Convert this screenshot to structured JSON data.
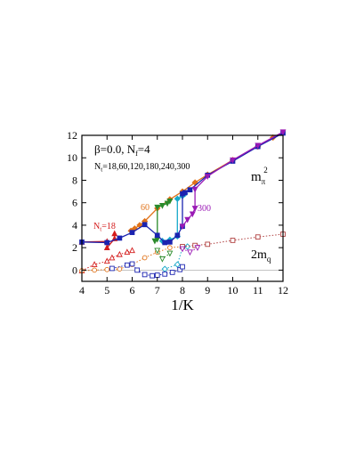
{
  "chart_data": {
    "type": "line",
    "xlabel": "1/K",
    "ylabel": "",
    "xlim": [
      4,
      12
    ],
    "ylim": [
      -1,
      12
    ],
    "xticks": [
      4,
      5,
      6,
      7,
      8,
      9,
      10,
      11,
      12
    ],
    "yticks": [
      0,
      2,
      4,
      6,
      8,
      10,
      12
    ],
    "grid": false,
    "annotations": {
      "params": "β=0.0,  N",
      "params_sub": "f",
      "params_tail": "=4",
      "nt_prefix": "N",
      "nt_sub": "t",
      "nt_list": "=18,60,120,180,240,300",
      "nt18_prefix": "N",
      "nt18_sub": "t",
      "nt18_tail": "=18",
      "label_60": "60",
      "label_300": "300",
      "mpi_main": "m",
      "mpi_sub": "π",
      "mpi_sup": "2",
      "mq_main": "2m",
      "mq_sub": "q"
    },
    "series": [
      {
        "group": "m_pi^2",
        "color": "#d41c1c",
        "marker": "triangle-up",
        "style": "solid",
        "x": [
          4.0,
          5.0,
          5.0,
          5.3,
          5.3
        ],
        "y": [
          2.5,
          2.55,
          2.0,
          2.8,
          3.25
        ]
      },
      {
        "group": "m_pi^2",
        "color": "#e0731a",
        "marker": "diamond",
        "style": "solid",
        "x": [
          5.95,
          6.1,
          6.3,
          6.5,
          7.0,
          7.5,
          8.0,
          8.5,
          9.0,
          10.0,
          11.0,
          11.6
        ],
        "y": [
          3.5,
          3.7,
          4.0,
          4.35,
          5.5,
          6.3,
          7.0,
          7.8,
          8.5,
          9.8,
          11.0,
          11.8
        ]
      },
      {
        "group": "m_pi^2",
        "color": "#2a8a2a",
        "marker": "triangle-down",
        "style": "solid",
        "x": [
          6.9,
          7.0,
          7.0,
          7.2,
          7.4,
          7.5
        ],
        "y": [
          2.6,
          2.75,
          5.6,
          5.75,
          5.95,
          6.15
        ]
      },
      {
        "group": "m_pi^2",
        "color": "#18a9c9",
        "marker": "diamond",
        "style": "solid",
        "x": [
          7.2,
          7.5,
          7.8,
          7.8,
          8.0,
          8.1
        ],
        "y": [
          2.6,
          2.7,
          3.0,
          6.35,
          6.6,
          6.8
        ]
      },
      {
        "group": "m_pi^2",
        "color": "#1b23b0",
        "marker": "square",
        "style": "solid",
        "x": [
          4.0,
          5.0,
          5.5,
          6.0,
          6.5,
          7.0,
          7.3,
          7.5,
          7.8,
          8.0,
          8.0,
          8.1,
          8.3,
          9.0,
          10.0,
          11.0,
          12.0
        ],
        "y": [
          2.5,
          2.45,
          2.85,
          3.35,
          4.05,
          3.1,
          2.45,
          2.5,
          3.1,
          3.9,
          6.8,
          6.9,
          7.15,
          8.45,
          9.7,
          11.0,
          12.2
        ]
      },
      {
        "group": "m_pi^2",
        "color": "#9a1ab5",
        "marker": "triangle-down",
        "style": "solid",
        "x": [
          8.0,
          8.2,
          8.4,
          8.5,
          8.5,
          9.0,
          10.0,
          11.0,
          12.0
        ],
        "y": [
          3.9,
          4.5,
          5.0,
          5.5,
          7.2,
          8.35,
          9.8,
          11.1,
          12.3
        ]
      },
      {
        "group": "2m_q",
        "color": "#d41c1c",
        "marker": "triangle-up",
        "style": "dotted",
        "x": [
          4.0,
          4.5,
          5.0,
          5.2,
          5.5,
          5.8,
          6.0
        ],
        "y": [
          -0.05,
          0.5,
          0.8,
          1.1,
          1.4,
          1.6,
          1.75
        ]
      },
      {
        "group": "2m_q",
        "color": "#e0731a",
        "marker": "circle",
        "style": "dotted",
        "x": [
          4.0,
          4.5,
          5.0,
          5.5,
          6.0,
          6.5,
          7.0,
          7.5,
          8.0
        ],
        "y": [
          -0.05,
          0.0,
          0.05,
          0.1,
          0.5,
          1.1,
          1.6,
          2.0,
          2.1
        ]
      },
      {
        "group": "2m_q",
        "color": "#2a8a2a",
        "marker": "triangle-down",
        "style": "dotted",
        "x": [
          7.0,
          7.2,
          7.5
        ],
        "y": [
          1.75,
          1.0,
          1.5
        ]
      },
      {
        "group": "2m_q",
        "color": "#18a9c9",
        "marker": "diamond",
        "style": "dotted",
        "x": [
          7.3,
          7.8,
          8.0,
          8.2
        ],
        "y": [
          0.1,
          0.5,
          2.0,
          2.1
        ]
      },
      {
        "group": "2m_q",
        "color": "#1b23b0",
        "marker": "square",
        "style": "dotted",
        "x": [
          5.2,
          5.8,
          6.0,
          6.2,
          6.5,
          6.8,
          7.0,
          7.3,
          7.6,
          7.9,
          8.0
        ],
        "y": [
          0.15,
          0.45,
          0.55,
          0.0,
          -0.4,
          -0.5,
          -0.45,
          -0.35,
          -0.2,
          0.05,
          0.3
        ]
      },
      {
        "group": "2m_q",
        "color": "#b04040",
        "marker": "square",
        "style": "dotted",
        "x": [
          8.0,
          8.5,
          9.0,
          10.0,
          11.0,
          12.0
        ],
        "y": [
          2.1,
          2.2,
          2.3,
          2.65,
          2.95,
          3.2
        ]
      },
      {
        "group": "2m_q",
        "color": "#9a1ab5",
        "marker": "triangle-down",
        "style": "dotted",
        "x": [
          8.0,
          8.3,
          8.6
        ],
        "y": [
          1.9,
          1.6,
          2.0
        ]
      }
    ]
  }
}
